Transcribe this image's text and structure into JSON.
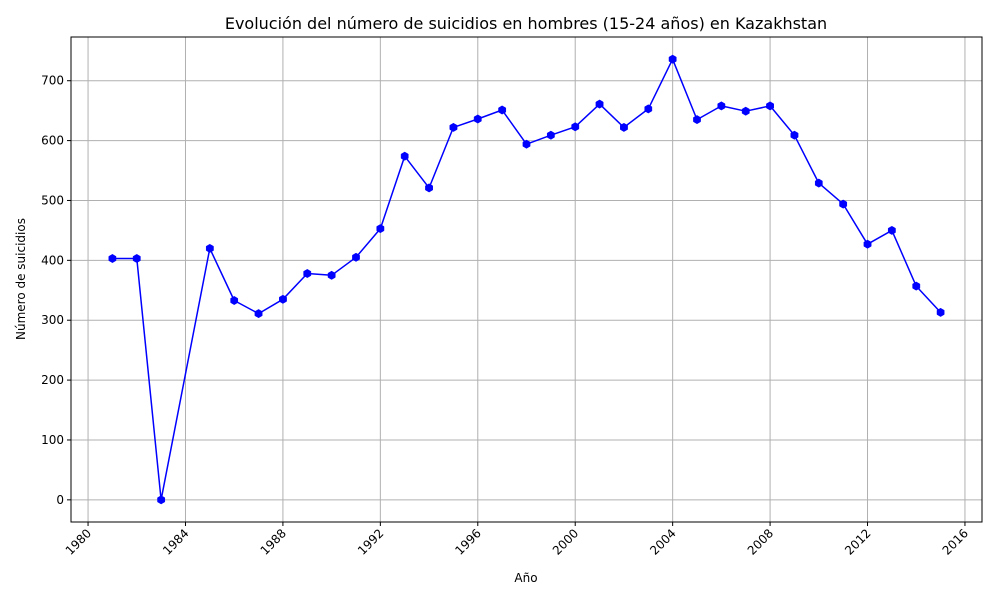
{
  "chart_data": {
    "type": "line",
    "title": "Evolución del número de suicidios en hombres (15-24 años) en Kazakhstan",
    "xlabel": "Año",
    "ylabel": "Número de suicidios",
    "xlim": [
      1979.3,
      2016.7
    ],
    "ylim": [
      -37,
      773
    ],
    "x_ticks": [
      1980,
      1984,
      1988,
      1992,
      1996,
      2000,
      2004,
      2008,
      2012,
      2016
    ],
    "x_tick_labels": [
      "1980",
      "1984",
      "1988",
      "1992",
      "1996",
      "2000",
      "2004",
      "2008",
      "2012",
      "2016"
    ],
    "y_ticks": [
      0,
      100,
      200,
      300,
      400,
      500,
      600,
      700
    ],
    "y_tick_labels": [
      "0",
      "100",
      "200",
      "300",
      "400",
      "500",
      "600",
      "700"
    ],
    "grid": true,
    "line_color": "#0000ff",
    "series": [
      {
        "x": [
          1981,
          1982,
          1983,
          1985,
          1986,
          1987,
          1988,
          1989,
          1990,
          1991,
          1992,
          1993,
          1994,
          1995,
          1996,
          1997,
          1998,
          1999,
          2000,
          2001,
          2002,
          2003,
          2004,
          2005,
          2006,
          2007,
          2008,
          2009,
          2010,
          2011,
          2012,
          2013,
          2014,
          2015
        ],
        "values": [
          403,
          403,
          0,
          420,
          333,
          311,
          335,
          378,
          375,
          405,
          453,
          574,
          521,
          622,
          636,
          651,
          594,
          609,
          623,
          661,
          622,
          653,
          736,
          635,
          658,
          649,
          658,
          609,
          529,
          494,
          427,
          450,
          357,
          313
        ]
      }
    ]
  }
}
